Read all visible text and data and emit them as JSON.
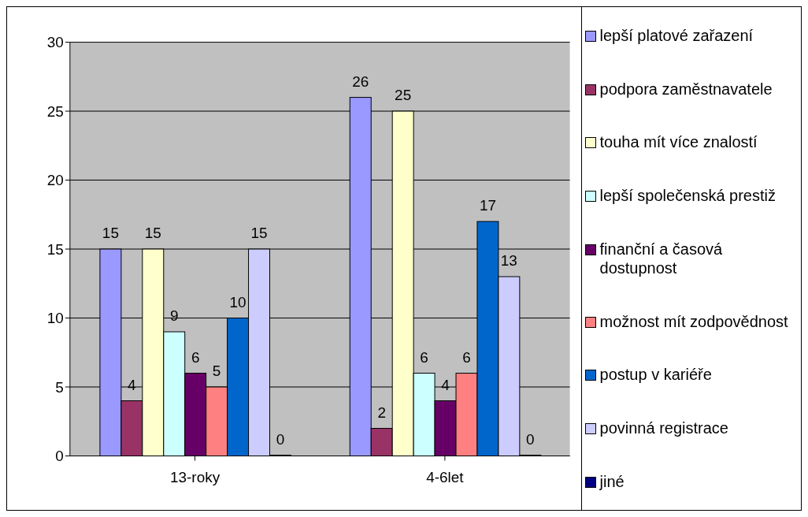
{
  "chart_data": {
    "type": "bar",
    "categories": [
      "13-roky",
      "4-6let"
    ],
    "series": [
      {
        "name": "lepší platové zařazení",
        "color": "#9999ff",
        "values": [
          15,
          26
        ]
      },
      {
        "name": "podpora zaměstnavatele",
        "color": "#993366",
        "values": [
          4,
          2
        ]
      },
      {
        "name": "touha mít více znalostí",
        "color": "#ffffcc",
        "values": [
          15,
          25
        ]
      },
      {
        "name": "lepší společenská prestiž",
        "color": "#ccffff",
        "values": [
          9,
          6
        ]
      },
      {
        "name": "finanční a časová dostupnost",
        "color": "#660066",
        "values": [
          6,
          4
        ]
      },
      {
        "name": "možnost mít zodpovědnost",
        "color": "#ff8080",
        "values": [
          5,
          6
        ]
      },
      {
        "name": "postup v kariéře",
        "color": "#0066cc",
        "values": [
          10,
          17
        ]
      },
      {
        "name": "povinná registrace",
        "color": "#ccccff",
        "values": [
          15,
          13
        ]
      },
      {
        "name": "jiné",
        "color": "#000080",
        "values": [
          0,
          0
        ]
      }
    ],
    "ylim": [
      0,
      30
    ],
    "yticks": [
      0,
      5,
      10,
      15,
      20,
      25,
      30
    ],
    "grid": "y",
    "legend": "right",
    "data_labels": true
  }
}
